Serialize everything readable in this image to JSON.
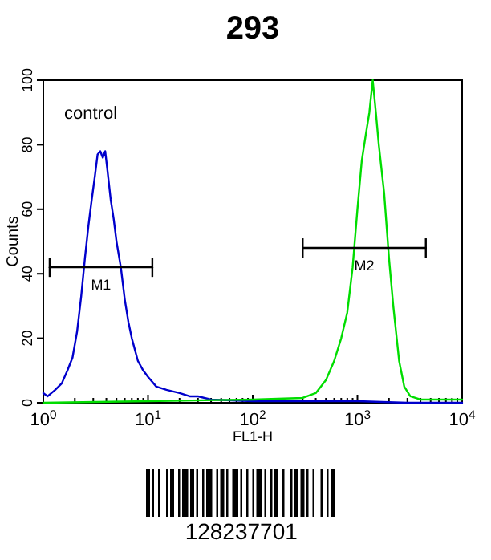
{
  "chart_data": {
    "type": "line",
    "title": "293",
    "xlabel": "FL1-H",
    "ylabel": "Counts",
    "log": "x",
    "grid": false,
    "marker": "none",
    "line_style": "solid",
    "xlim": [
      1,
      10000
    ],
    "ylim": [
      0,
      100
    ],
    "xticks": [
      {
        "value": 1,
        "label": "10$^{0}$"
      },
      {
        "value": 2,
        "label": null
      },
      {
        "value": 3,
        "label": null
      },
      {
        "value": 4,
        "label": null
      },
      {
        "value": 5,
        "label": null
      },
      {
        "value": 6,
        "label": null
      },
      {
        "value": 7,
        "label": null
      },
      {
        "value": 8,
        "label": null
      },
      {
        "value": 9,
        "label": null
      },
      {
        "value": 10,
        "label": "10$^{1}$"
      },
      {
        "value": 20,
        "label": null
      },
      {
        "value": 30,
        "label": null
      },
      {
        "value": 40,
        "label": null
      },
      {
        "value": 50,
        "label": null
      },
      {
        "value": 60,
        "label": null
      },
      {
        "value": 70,
        "label": null
      },
      {
        "value": 80,
        "label": null
      },
      {
        "value": 90,
        "label": null
      },
      {
        "value": 100,
        "label": "10$^{2}$"
      },
      {
        "value": 200,
        "label": null
      },
      {
        "value": 300,
        "label": null
      },
      {
        "value": 400,
        "label": null
      },
      {
        "value": 500,
        "label": null
      },
      {
        "value": 600,
        "label": null
      },
      {
        "value": 700,
        "label": null
      },
      {
        "value": 800,
        "label": null
      },
      {
        "value": 900,
        "label": null
      },
      {
        "value": 1000,
        "label": "10$^{3}$"
      },
      {
        "value": 2000,
        "label": null
      },
      {
        "value": 3000,
        "label": null
      },
      {
        "value": 4000,
        "label": null
      },
      {
        "value": 5000,
        "label": null
      },
      {
        "value": 6000,
        "label": null
      },
      {
        "value": 7000,
        "label": null
      },
      {
        "value": 8000,
        "label": null
      },
      {
        "value": 9000,
        "label": null
      },
      {
        "value": 10000,
        "label": "10$^{4}$"
      }
    ],
    "yticks": [
      0,
      20,
      40,
      60,
      80,
      100
    ],
    "series": [
      {
        "color": "#0000cc",
        "x": [
          1,
          1.1,
          1.3,
          1.5,
          1.7,
          1.9,
          2.1,
          2.3,
          2.5,
          2.7,
          2.9,
          3.1,
          3.3,
          3.5,
          3.7,
          3.9,
          4.1,
          4.4,
          4.7,
          5,
          5.5,
          6,
          6.5,
          7,
          8,
          9,
          10,
          12,
          15,
          20,
          25,
          30,
          40,
          60,
          100,
          300,
          1000,
          3000,
          10000
        ],
        "values": [
          3,
          2,
          4,
          6,
          10,
          14,
          22,
          33,
          45,
          55,
          63,
          70,
          77,
          78,
          76,
          78,
          72,
          63,
          57,
          50,
          42,
          32,
          25,
          20,
          13,
          10,
          8,
          5,
          4,
          3,
          2,
          2,
          1,
          null,
          0.5,
          0.5,
          0.5,
          0,
          0
        ]
      },
      {
        "color": "#00dd00",
        "x": [
          1,
          10,
          100,
          300,
          400,
          500,
          600,
          700,
          800,
          900,
          1000,
          1100,
          1200,
          1300,
          1400,
          1500,
          1600,
          1800,
          2000,
          2200,
          2500,
          2800,
          3200,
          4000,
          10000
        ],
        "values": [
          0,
          0.5,
          1,
          1.5,
          3,
          7,
          13,
          20,
          28,
          42,
          60,
          75,
          83,
          90,
          100,
          90,
          80,
          65,
          45,
          30,
          13,
          5,
          2,
          1,
          1
        ]
      },
      {
        "color": "#000000",
        "x": [
          1.15,
          11
        ],
        "values": [
          42,
          42
        ]
      },
      {
        "color": "#000000",
        "x": [
          300,
          4500
        ],
        "values": [
          48,
          48
        ]
      }
    ],
    "annotations": [
      "control",
      "M1",
      "M2",
      "128237701"
    ]
  }
}
